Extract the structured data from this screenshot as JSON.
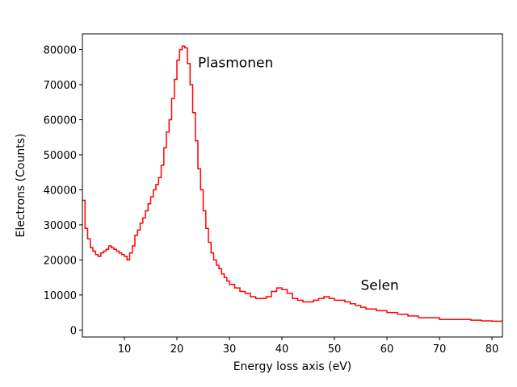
{
  "chart_data": {
    "type": "line",
    "xlabel": "Energy loss axis (eV)",
    "ylabel": "Electrons (Counts)",
    "xlim": [
      2.0,
      82.0
    ],
    "ylim": [
      -2000,
      84500
    ],
    "xticks": [
      10,
      20,
      30,
      40,
      50,
      60,
      70,
      80
    ],
    "yticks": [
      0,
      10000,
      20000,
      30000,
      40000,
      50000,
      60000,
      70000,
      80000
    ],
    "grid": false,
    "annotations": [
      {
        "text": "Plasmonen",
        "x": 24.0,
        "y": 75000
      },
      {
        "text": "Selen",
        "x": 55.0,
        "y": 11500
      }
    ],
    "series": [
      {
        "color": "#ff0000",
        "x": [
          2.0,
          2.5,
          3.0,
          3.5,
          4.0,
          4.5,
          5.0,
          5.5,
          6.0,
          6.5,
          7.0,
          7.5,
          8.0,
          8.5,
          9.0,
          9.5,
          10.0,
          10.5,
          11.0,
          11.5,
          12.0,
          12.5,
          13.0,
          13.5,
          14.0,
          14.5,
          15.0,
          15.5,
          16.0,
          16.5,
          17.0,
          17.5,
          18.0,
          18.5,
          19.0,
          19.5,
          20.0,
          20.5,
          21.0,
          21.5,
          22.0,
          22.5,
          23.0,
          23.5,
          24.0,
          24.5,
          25.0,
          25.5,
          26.0,
          26.5,
          27.0,
          27.5,
          28.0,
          28.5,
          29.0,
          29.5,
          30.0,
          31.0,
          32.0,
          33.0,
          34.0,
          35.0,
          36.0,
          37.0,
          38.0,
          39.0,
          40.0,
          41.0,
          42.0,
          43.0,
          44.0,
          45.0,
          46.0,
          47.0,
          48.0,
          49.0,
          50.0,
          51.0,
          52.0,
          53.0,
          54.0,
          55.0,
          56.0,
          57.0,
          58.0,
          59.0,
          60.0,
          62.0,
          64.0,
          66.0,
          68.0,
          70.0,
          72.0,
          74.0,
          76.0,
          78.0,
          80.0,
          82.0
        ],
        "values": [
          37000,
          29000,
          26000,
          23500,
          22500,
          21500,
          21000,
          22000,
          22500,
          23000,
          24000,
          23500,
          23000,
          22500,
          22000,
          21500,
          21000,
          20000,
          22000,
          24000,
          27000,
          28500,
          30500,
          32000,
          34000,
          36000,
          38000,
          40000,
          41500,
          43500,
          47000,
          52000,
          56500,
          60000,
          66000,
          71500,
          77000,
          80000,
          81000,
          80500,
          76000,
          70000,
          62000,
          54000,
          46000,
          40000,
          34000,
          29000,
          25000,
          22000,
          20000,
          18500,
          17500,
          16000,
          15000,
          14000,
          13000,
          12000,
          11000,
          10500,
          9500,
          9000,
          9000,
          9500,
          11000,
          12000,
          11500,
          10500,
          9000,
          8500,
          8000,
          8000,
          8500,
          9000,
          9500,
          9000,
          8500,
          8500,
          8000,
          7500,
          7000,
          6500,
          6000,
          6000,
          5500,
          5500,
          5000,
          4500,
          4000,
          3500,
          3500,
          3000,
          3000,
          3000,
          2800,
          2600,
          2500,
          2500
        ]
      }
    ]
  }
}
